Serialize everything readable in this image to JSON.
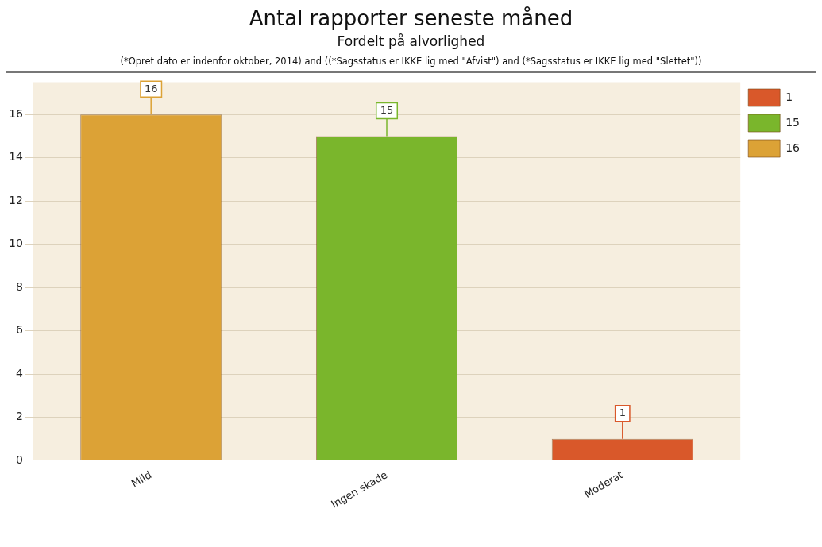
{
  "chart_data": {
    "type": "bar",
    "title": "Antal rapporter seneste måned",
    "subtitle": "Fordelt på alvorlighed",
    "annotations": [
      "(*Opret dato er indenfor oktober, 2014) and ((*Sagsstatus er IKKE lig med \"Afvist\") and (*Sagsstatus er IKKE lig med \"Slettet\"))"
    ],
    "categories": [
      "Mild",
      "Ingen skade",
      "Moderat"
    ],
    "series": [
      {
        "name": "16",
        "color": "#dca236",
        "values": [
          16,
          null,
          null
        ]
      },
      {
        "name": "15",
        "color": "#7ab62c",
        "values": [
          null,
          15,
          null
        ]
      },
      {
        "name": "1",
        "color": "#d9582a",
        "values": [
          null,
          null,
          1
        ]
      }
    ],
    "ylim": [
      0,
      17.5
    ],
    "yticks": [
      0,
      2,
      4,
      6,
      8,
      10,
      12,
      14,
      16
    ],
    "grid": "y",
    "legend": "top right",
    "data_labels": true
  }
}
